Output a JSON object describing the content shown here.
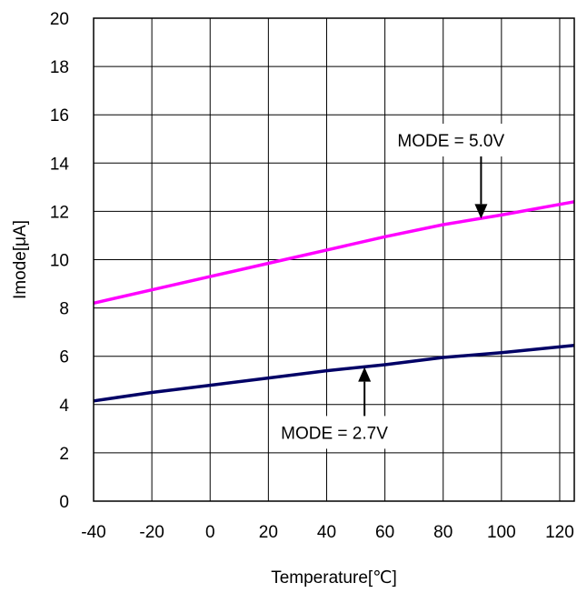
{
  "chart_data": {
    "type": "line",
    "title": "",
    "xlabel": "Temperature[℃]",
    "ylabel": "Imode[μA]",
    "xlim": [
      -40,
      125
    ],
    "ylim": [
      0,
      20
    ],
    "grid": true,
    "x_ticks": [
      -40,
      -20,
      0,
      20,
      40,
      60,
      80,
      100,
      120
    ],
    "x_tick_labels": [
      "-40",
      "-20",
      "0",
      "20",
      "40",
      "60",
      "80",
      "100",
      "120"
    ],
    "y_ticks": [
      0,
      2,
      4,
      6,
      8,
      10,
      12,
      14,
      16,
      18,
      20
    ],
    "y_tick_labels": [
      "0",
      "2",
      "4",
      "6",
      "8",
      "10",
      "12",
      "14",
      "16",
      "18",
      "20"
    ],
    "series": [
      {
        "color": "#ff00ff",
        "x": [
          -40,
          -20,
          0,
          20,
          40,
          60,
          80,
          100,
          125
        ],
        "values": [
          8.2,
          8.75,
          9.3,
          9.85,
          10.4,
          10.95,
          11.45,
          11.85,
          12.4
        ]
      },
      {
        "color": "#000066",
        "x": [
          -40,
          -20,
          0,
          20,
          40,
          60,
          80,
          100,
          125
        ],
        "values": [
          4.15,
          4.5,
          4.8,
          5.1,
          5.4,
          5.65,
          5.95,
          6.15,
          6.45
        ]
      }
    ],
    "annotations": [
      {
        "text": "MODE = 5.0V",
        "arrow_x": 93,
        "arrow_y_from": 14.5,
        "arrow_y_to": 11.7
      },
      {
        "text": "MODE = 2.7V",
        "arrow_x": 53,
        "arrow_y_from": 3.3,
        "arrow_y_to": 5.55
      }
    ]
  }
}
